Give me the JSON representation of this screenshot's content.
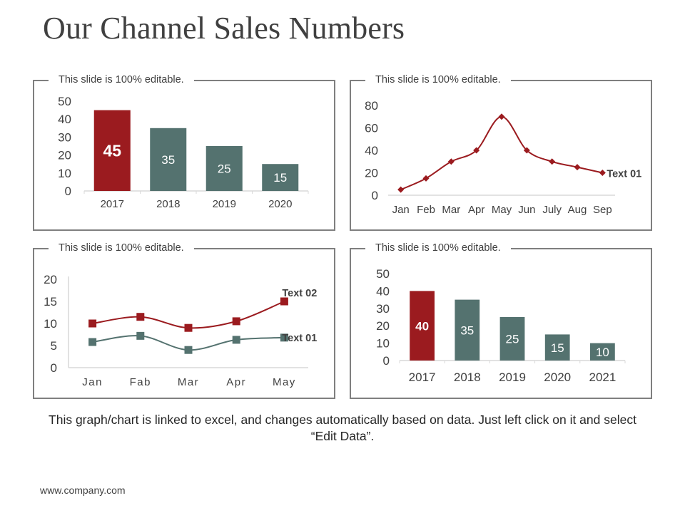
{
  "slide": {
    "title": "Our Channel Sales Numbers",
    "note": "This graph/chart is linked to excel, and changes automatically based on data. Just left click on it and select “Edit Data”.",
    "url": "www.company.com"
  },
  "colors": {
    "red": "#9b1b1f",
    "teal": "#54726f",
    "axis": "#d9d9d9",
    "text": "#404040",
    "frame": "#7f7f7f"
  },
  "chart_data": [
    {
      "type": "bar",
      "panel_label": "This slide is 100% editable.",
      "categories": [
        "2017",
        "2018",
        "2019",
        "2020"
      ],
      "values": [
        45,
        35,
        25,
        15
      ],
      "labels": [
        "45",
        "35",
        "25",
        "15"
      ],
      "highlight_index": 0,
      "ylim": [
        0,
        50
      ],
      "yticks": [
        0,
        10,
        20,
        30,
        40,
        50
      ],
      "ytick_labels": [
        "0",
        "10",
        "20",
        "30",
        "40",
        "50"
      ]
    },
    {
      "type": "line",
      "panel_label": "This slide is 100% editable.",
      "categories": [
        "Jan",
        "Feb",
        "Mar",
        "Apr",
        "May",
        "Jun",
        "July",
        "Aug",
        "Sep"
      ],
      "series": [
        {
          "name": "Text 01",
          "values": [
            5,
            15,
            30,
            40,
            70,
            40,
            30,
            25,
            20
          ]
        }
      ],
      "ylim": [
        0,
        80
      ],
      "yticks": [
        0,
        20,
        40,
        60,
        80
      ],
      "ytick_labels": [
        "0",
        "20",
        "40",
        "60",
        "80"
      ]
    },
    {
      "type": "line",
      "panel_label": "This slide is 100% editable.",
      "categories": [
        "Jan",
        "Fab",
        "Mar",
        "Apr",
        "May"
      ],
      "series": [
        {
          "name": "Text 02",
          "values": [
            10,
            11.5,
            9,
            10.5,
            15
          ]
        },
        {
          "name": "Text 01",
          "values": [
            5.8,
            7.2,
            4,
            6.3,
            6.8
          ]
        }
      ],
      "ylim": [
        0,
        20
      ],
      "yticks": [
        0,
        5,
        10,
        15,
        20
      ],
      "ytick_labels": [
        "0",
        "5",
        "10",
        "15",
        "20"
      ]
    },
    {
      "type": "bar",
      "panel_label": "This slide is 100% editable.",
      "categories": [
        "2017",
        "2018",
        "2019",
        "2020",
        "2021"
      ],
      "values": [
        40,
        35,
        25,
        15,
        10
      ],
      "labels": [
        "40",
        "35",
        "25",
        "15",
        "10"
      ],
      "highlight_index": 0,
      "ylim": [
        0,
        50
      ],
      "yticks": [
        0,
        10,
        20,
        30,
        40,
        50
      ],
      "ytick_labels": [
        "0",
        "10",
        "20",
        "30",
        "40",
        "50"
      ]
    }
  ]
}
